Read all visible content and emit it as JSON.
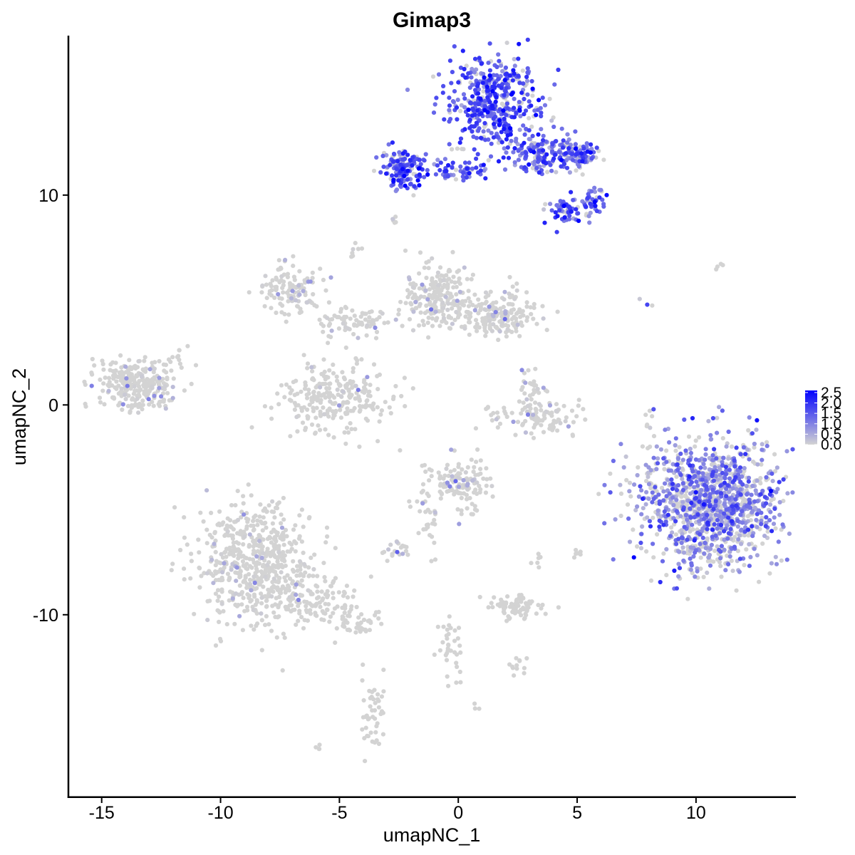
{
  "chart_data": {
    "type": "scatter",
    "title": "Gimap3",
    "xlabel": "umapNC_1",
    "ylabel": "umapNC_2",
    "xlim": [
      -16.4,
      14.2
    ],
    "ylim": [
      -18.7,
      17.6
    ],
    "x_ticks": [
      -15,
      -10,
      -5,
      0,
      5,
      10
    ],
    "x_tick_labels": [
      "-15",
      "-10",
      "-5",
      "0",
      "5",
      "10"
    ],
    "y_ticks": [
      -10,
      0,
      10
    ],
    "y_tick_labels": [
      "-10",
      "0",
      "10"
    ],
    "grid": false,
    "legend": {
      "placement": "right",
      "type": "colorbar",
      "title": "",
      "ticks": [
        0.0,
        0.5,
        1.0,
        1.5,
        2.0,
        2.5
      ],
      "tick_labels": [
        "0.0",
        "0.5",
        "1.0",
        "1.5",
        "2.0",
        "2.5"
      ],
      "color_low": "#d3d3d3",
      "color_high": "#0000ff",
      "range": [
        0,
        2.6
      ]
    },
    "point_colors": {
      "low": "#d3d3d3",
      "high": "#0000ff"
    },
    "clusters": [
      {
        "x": 1.5,
        "y": 14.5,
        "sx": 0.9,
        "sy": 1.1,
        "n": 450,
        "expr": 1.55
      },
      {
        "x": -2.3,
        "y": 11.3,
        "sx": 0.45,
        "sy": 0.5,
        "n": 140,
        "expr": 1.5
      },
      {
        "x": 0.0,
        "y": 11.2,
        "sx": 0.9,
        "sy": 0.25,
        "n": 60,
        "expr": 1.5
      },
      {
        "x": 3.6,
        "y": 12.0,
        "sx": 0.7,
        "sy": 0.45,
        "n": 160,
        "expr": 1.35
      },
      {
        "x": 5.1,
        "y": 11.9,
        "sx": 0.45,
        "sy": 0.3,
        "n": 70,
        "expr": 1.3
      },
      {
        "x": 4.5,
        "y": 9.3,
        "sx": 0.4,
        "sy": 0.35,
        "n": 60,
        "expr": 1.45
      },
      {
        "x": 5.7,
        "y": 9.7,
        "sx": 0.3,
        "sy": 0.35,
        "n": 40,
        "expr": 1.45
      },
      {
        "x": -7.0,
        "y": 5.5,
        "sx": 0.6,
        "sy": 0.55,
        "n": 120,
        "expr": 0.05
      },
      {
        "x": -4.3,
        "y": 4.0,
        "sx": 1.0,
        "sy": 0.4,
        "n": 80,
        "expr": 0.05
      },
      {
        "x": -0.8,
        "y": 5.2,
        "sx": 0.7,
        "sy": 0.75,
        "n": 220,
        "expr": 0.05
      },
      {
        "x": 1.7,
        "y": 4.3,
        "sx": 0.8,
        "sy": 0.55,
        "n": 180,
        "expr": 0.05
      },
      {
        "x": -5.2,
        "y": 0.3,
        "sx": 1.15,
        "sy": 0.8,
        "n": 260,
        "expr": 0.04
      },
      {
        "x": 3.4,
        "y": -0.6,
        "sx": 1.0,
        "sy": 0.35,
        "n": 100,
        "expr": 0.05
      },
      {
        "x": 3.2,
        "y": 0.8,
        "sx": 0.35,
        "sy": 0.45,
        "n": 30,
        "expr": 0.05
      },
      {
        "x": -13.6,
        "y": 1.0,
        "sx": 0.8,
        "sy": 0.6,
        "n": 280,
        "expr": 0.03
      },
      {
        "x": -11.7,
        "y": 2.2,
        "sx": 0.25,
        "sy": 0.4,
        "n": 12,
        "expr": 0.0
      },
      {
        "x": 0.2,
        "y": -3.7,
        "sx": 0.7,
        "sy": 0.6,
        "n": 140,
        "expr": 0.12
      },
      {
        "x": -1.3,
        "y": -5.5,
        "sx": 0.4,
        "sy": 0.9,
        "n": 30,
        "expr": 0.03
      },
      {
        "x": -2.6,
        "y": -6.9,
        "sx": 0.3,
        "sy": 0.2,
        "n": 20,
        "expr": 0.3
      },
      {
        "x": -8.5,
        "y": -7.6,
        "sx": 1.2,
        "sy": 1.4,
        "n": 600,
        "expr": 0.01
      },
      {
        "x": -6.0,
        "y": -9.3,
        "sx": 0.9,
        "sy": 0.6,
        "n": 90,
        "expr": 0.0
      },
      {
        "x": -4.3,
        "y": -10.3,
        "sx": 0.5,
        "sy": 0.35,
        "n": 50,
        "expr": 0.0
      },
      {
        "x": -3.6,
        "y": -14.6,
        "sx": 0.3,
        "sy": 0.9,
        "n": 45,
        "expr": 0.0
      },
      {
        "x": 2.4,
        "y": -9.7,
        "sx": 0.55,
        "sy": 0.3,
        "n": 80,
        "expr": 0.0
      },
      {
        "x": -0.3,
        "y": -11.2,
        "sx": 0.3,
        "sy": 1.0,
        "n": 35,
        "expr": 0.0
      },
      {
        "x": 2.5,
        "y": -12.5,
        "sx": 0.2,
        "sy": 0.25,
        "n": 12,
        "expr": 0.0
      },
      {
        "x": 10.7,
        "y": -4.7,
        "sx": 1.5,
        "sy": 1.45,
        "n": 1200,
        "expr": 0.95
      },
      {
        "x": 10.9,
        "y": 6.6,
        "sx": 0.15,
        "sy": 0.1,
        "n": 4,
        "expr": 0.0
      },
      {
        "x": 7.9,
        "y": 4.7,
        "sx": 0.2,
        "sy": 0.2,
        "n": 3,
        "expr": 1.2
      },
      {
        "x": 8.0,
        "y": -0.2,
        "sx": 0.1,
        "sy": 0.9,
        "n": 8,
        "expr": 0.05
      },
      {
        "x": -4.4,
        "y": 7.2,
        "sx": 0.15,
        "sy": 0.25,
        "n": 8,
        "expr": 0.15
      },
      {
        "x": -2.7,
        "y": 8.8,
        "sx": 0.1,
        "sy": 0.15,
        "n": 5,
        "expr": 0.1
      },
      {
        "x": 5.0,
        "y": -7.3,
        "sx": 0.1,
        "sy": 0.2,
        "n": 6,
        "expr": 0.0
      },
      {
        "x": 3.3,
        "y": -7.3,
        "sx": 0.1,
        "sy": 0.2,
        "n": 6,
        "expr": 0.0
      },
      {
        "x": -6.0,
        "y": -16.3,
        "sx": 0.1,
        "sy": 0.1,
        "n": 4,
        "expr": 0.0
      },
      {
        "x": 0.6,
        "y": -14.4,
        "sx": 0.1,
        "sy": 0.1,
        "n": 3,
        "expr": 0.0
      }
    ]
  }
}
